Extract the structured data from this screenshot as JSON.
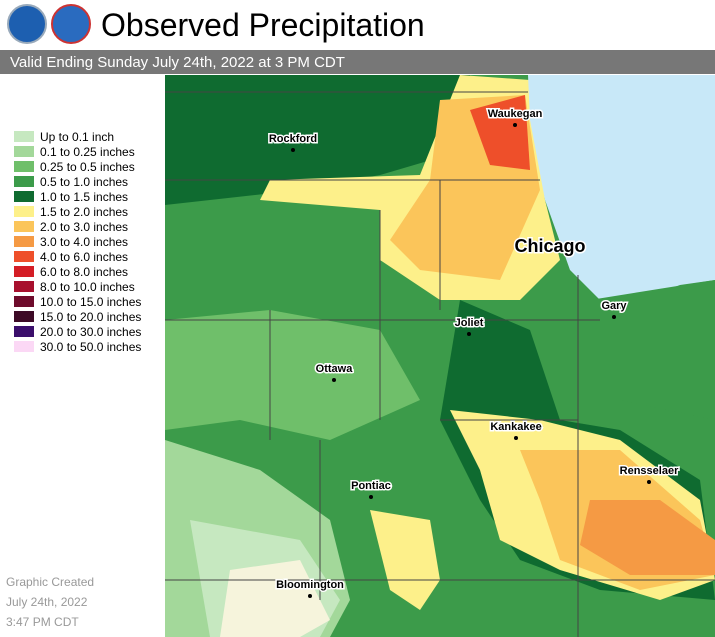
{
  "header": {
    "title": "Observed Precipitation",
    "subtitle": "Valid Ending Sunday July 24th, 2022 at 3 PM CDT"
  },
  "legend": [
    {
      "label": "Up to 0.1 inch",
      "color": "#c6e8c0"
    },
    {
      "label": "0.1 to 0.25 inches",
      "color": "#a3d89a"
    },
    {
      "label": "0.25 to 0.5 inches",
      "color": "#6fbf6a"
    },
    {
      "label": "0.5 to 1.0 inches",
      "color": "#3c9b4a"
    },
    {
      "label": "1.0 to 1.5 inches",
      "color": "#0f6b30"
    },
    {
      "label": "1.5 to 2.0 inches",
      "color": "#fdf08a"
    },
    {
      "label": "2.0 to 3.0 inches",
      "color": "#fbc55a"
    },
    {
      "label": "3.0 to 4.0 inches",
      "color": "#f59a44"
    },
    {
      "label": "4.0 to 6.0 inches",
      "color": "#ee4f2a"
    },
    {
      "label": "6.0 to 8.0 inches",
      "color": "#d41d25"
    },
    {
      "label": "8.0 to 10.0 inches",
      "color": "#a8102e"
    },
    {
      "label": "10.0 to 15.0 inches",
      "color": "#6e0b2b"
    },
    {
      "label": "15.0 to 20.0 inches",
      "color": "#3d0a26"
    },
    {
      "label": "20.0 to 30.0 inches",
      "color": "#3b0e6b"
    },
    {
      "label": "30.0 to 50.0 inches",
      "color": "#fbd8f5"
    }
  ],
  "cities": [
    "Rockford",
    "Waukegan",
    "Chicago",
    "Gary",
    "Joliet",
    "Ottawa",
    "Kankakee",
    "Rensselaer",
    "Pontiac",
    "Bloomington"
  ],
  "footer": [
    "Graphic Created",
    "July 24th, 2022",
    "3:47 PM CDT"
  ]
}
